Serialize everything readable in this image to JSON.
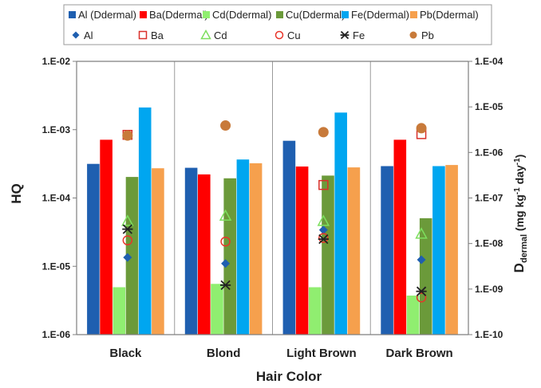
{
  "chart_data": {
    "type": "bar",
    "categories": [
      "Black",
      "Blond",
      "Light Brown",
      "Dark Brown"
    ],
    "xlabel": "Hair Color",
    "ylabel_left": "HQ",
    "ylabel_right": "D_dermal (mg kg-1 day-1)",
    "ylabel_right_parts": {
      "main": "D",
      "sub": "dermal",
      "units_open": " (mg kg",
      "sup1": "-1",
      "units_mid": " day",
      "sup2": "-1",
      "units_close": ")"
    },
    "y_left_scale": "log",
    "y_left_lim": [
      1e-06,
      0.01
    ],
    "y_left_ticks": [
      "1.E-06",
      "1.E-05",
      "1.E-04",
      "1.E-03",
      "1.E-02"
    ],
    "y_right_scale": "log",
    "y_right_lim": [
      1e-10,
      0.0001
    ],
    "y_right_ticks": [
      "1.E-10",
      "1.E-09",
      "1.E-08",
      "1.E-07",
      "1.E-06",
      "1.E-05",
      "1.E-04"
    ],
    "legend_position": "top",
    "bar_series": [
      {
        "name": "Al (Ddermal)",
        "color": "#1f5fb0",
        "values": [
          5.6e-07,
          4.6e-07,
          1.8e-06,
          5e-07
        ]
      },
      {
        "name": "Ba(Ddermal)",
        "color": "#ff0000",
        "values": [
          1.9e-06,
          3.3e-07,
          4.9e-07,
          1.9e-06
        ]
      },
      {
        "name": "Cd(Ddermal)",
        "color": "#90ee70",
        "values": [
          1.1e-09,
          1.3e-09,
          1.1e-09,
          7.2e-10
        ]
      },
      {
        "name": "Cu(Ddermal)",
        "color": "#6b9a3a",
        "values": [
          2.9e-07,
          2.7e-07,
          3.1e-07,
          3.6e-08
        ]
      },
      {
        "name": "Fe(Ddermal)",
        "color": "#00a6f0",
        "values": [
          9.7e-06,
          7e-07,
          7.5e-06,
          5e-07
        ]
      },
      {
        "name": "Pb(Ddermal)",
        "color": "#f6a04d",
        "values": [
          4.5e-07,
          5.8e-07,
          4.7e-07,
          5.3e-07
        ]
      }
    ],
    "marker_series": [
      {
        "name": "Al",
        "marker": "diamond",
        "color": "#1f5fb0",
        "values": [
          1.35e-05,
          1.1e-05,
          3.4e-05,
          1.25e-05
        ]
      },
      {
        "name": "Ba",
        "marker": "square-open",
        "color": "#d9302a",
        "values": [
          0.00084,
          null,
          0.000155,
          0.00086
        ]
      },
      {
        "name": "Cd",
        "marker": "triangle-open",
        "color": "#7ddf5e",
        "values": [
          4.6e-05,
          5.5e-05,
          4.6e-05,
          3e-05
        ]
      },
      {
        "name": "Cu",
        "marker": "circle-open",
        "color": "#e8352a",
        "values": [
          2.4e-05,
          2.3e-05,
          2.6e-05,
          3.5e-06
        ]
      },
      {
        "name": "Fe",
        "marker": "star",
        "color": "#222222",
        "values": [
          3.5e-05,
          5.3e-06,
          2.5e-05,
          4.3e-06
        ]
      },
      {
        "name": "Pb",
        "marker": "circle-filled",
        "color": "#c87a3a",
        "values": [
          0.00082,
          0.00115,
          0.00092,
          0.00105
        ]
      }
    ]
  }
}
